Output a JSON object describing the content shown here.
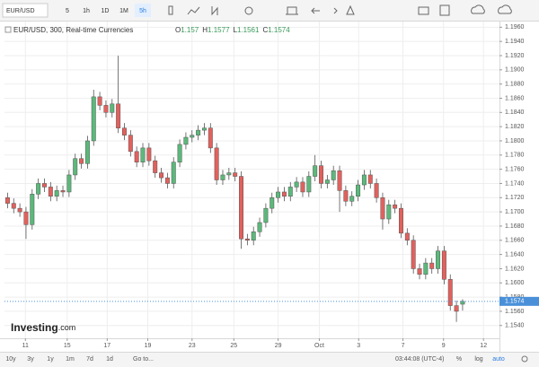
{
  "chart_data": {
    "type": "candlestick",
    "symbol": "EUR/USD",
    "intervals": [
      "5",
      "1h",
      "1D",
      "1M",
      "5h"
    ],
    "active_interval": 4,
    "title": "EUR/USD, 300, Real-time Currencies",
    "ohlc_labels": [
      "O",
      "H",
      "L",
      "C"
    ],
    "up_color": "#5bb97a",
    "down_color": "#e2615d",
    "current_color": "#4a90d9",
    "open": [
      1.172,
      1.1712,
      1.1705,
      1.17,
      1.1682,
      1.1725,
      1.174,
      1.1735,
      1.1722,
      1.173,
      1.1728,
      1.1752,
      1.1775,
      1.1768,
      1.18,
      1.1862,
      1.185,
      1.184,
      1.1852,
      1.1818,
      1.1808,
      1.1785,
      1.177,
      1.179,
      1.1772,
      1.1755,
      1.1748,
      1.174,
      1.177,
      1.1795,
      1.1805,
      1.1808,
      1.1815,
      1.1818,
      1.179,
      1.1745,
      1.1752,
      1.1755,
      1.175,
      1.1662,
      1.166,
      1.1672,
      1.1685,
      1.1705,
      1.172,
      1.1728,
      1.1722,
      1.1735,
      1.1742,
      1.1728,
      1.175,
      1.1765,
      1.174,
      1.1745,
      1.1758,
      1.173,
      1.1715,
      1.1722,
      1.1738,
      1.1752,
      1.174,
      1.172,
      1.169,
      1.171,
      1.1705,
      1.167,
      1.166,
      1.162,
      1.1612,
      1.1628,
      1.162,
      1.1645,
      1.1605,
      1.1568,
      1.157
    ],
    "high": [
      1.1727,
      1.1719,
      1.1712,
      1.1707,
      1.1732,
      1.1747,
      1.1747,
      1.1742,
      1.1737,
      1.1737,
      1.1759,
      1.1782,
      1.1782,
      1.1807,
      1.1872,
      1.1869,
      1.1857,
      1.1859,
      1.192,
      1.1825,
      1.1815,
      1.1792,
      1.1797,
      1.1797,
      1.1779,
      1.1762,
      1.1755,
      1.1777,
      1.1802,
      1.1812,
      1.1815,
      1.1822,
      1.1825,
      1.1825,
      1.1797,
      1.1759,
      1.1762,
      1.1762,
      1.1757,
      1.1669,
      1.1679,
      1.1692,
      1.1712,
      1.1727,
      1.1735,
      1.1735,
      1.1742,
      1.1749,
      1.1749,
      1.1757,
      1.178,
      1.1772,
      1.1752,
      1.1765,
      1.1765,
      1.1737,
      1.1729,
      1.1745,
      1.1759,
      1.1759,
      1.1747,
      1.1727,
      1.1717,
      1.1717,
      1.1712,
      1.1677,
      1.1667,
      1.1627,
      1.1635,
      1.1635,
      1.1652,
      1.1652,
      1.1612,
      1.1575,
      1.1577
    ],
    "low": [
      1.1705,
      1.1698,
      1.1693,
      1.1662,
      1.1675,
      1.1718,
      1.1728,
      1.1715,
      1.1715,
      1.1721,
      1.1721,
      1.1745,
      1.1761,
      1.1761,
      1.1793,
      1.1843,
      1.1833,
      1.1833,
      1.1811,
      1.1801,
      1.1778,
      1.1763,
      1.1763,
      1.1765,
      1.1748,
      1.1741,
      1.1733,
      1.1733,
      1.1763,
      1.1788,
      1.1798,
      1.1801,
      1.1808,
      1.1783,
      1.1738,
      1.1738,
      1.1745,
      1.1743,
      1.1648,
      1.1653,
      1.1653,
      1.1665,
      1.1678,
      1.1698,
      1.1713,
      1.1715,
      1.1715,
      1.1728,
      1.1721,
      1.1721,
      1.1743,
      1.1733,
      1.1733,
      1.1738,
      1.17,
      1.1708,
      1.1708,
      1.1715,
      1.1731,
      1.1733,
      1.1713,
      1.1675,
      1.1683,
      1.1698,
      1.1663,
      1.1653,
      1.1613,
      1.1605,
      1.1605,
      1.1613,
      1.1613,
      1.1598,
      1.1561,
      1.1545,
      1.1561
    ],
    "close": [
      1.1712,
      1.1705,
      1.17,
      1.1682,
      1.1725,
      1.174,
      1.1735,
      1.1722,
      1.173,
      1.1728,
      1.1752,
      1.1775,
      1.1768,
      1.18,
      1.1862,
      1.185,
      1.184,
      1.1852,
      1.1818,
      1.1808,
      1.1785,
      1.177,
      1.179,
      1.1772,
      1.1755,
      1.1748,
      1.174,
      1.177,
      1.1795,
      1.1805,
      1.1808,
      1.1815,
      1.1818,
      1.179,
      1.1745,
      1.1752,
      1.1755,
      1.175,
      1.1662,
      1.166,
      1.1672,
      1.1685,
      1.1705,
      1.172,
      1.1728,
      1.1722,
      1.1735,
      1.1742,
      1.1728,
      1.175,
      1.1765,
      1.174,
      1.1745,
      1.1758,
      1.173,
      1.1715,
      1.1722,
      1.1738,
      1.1752,
      1.174,
      1.172,
      1.169,
      1.171,
      1.1705,
      1.167,
      1.166,
      1.162,
      1.1612,
      1.1628,
      1.162,
      1.1645,
      1.1605,
      1.1568,
      1.156,
      1.1574
    ],
    "xlim": [
      -0.5,
      80
    ],
    "xticks": [
      {
        "value": 2.9,
        "label": "11"
      },
      {
        "value": 9.7,
        "label": "15"
      },
      {
        "value": 16.2,
        "label": "17"
      },
      {
        "value": 22.8,
        "label": "19"
      },
      {
        "value": 30,
        "label": "23"
      },
      {
        "value": 36.8,
        "label": "25"
      },
      {
        "value": 44,
        "label": "29"
      },
      {
        "value": 50.7,
        "label": "Oct"
      },
      {
        "value": 57.1,
        "label": "3"
      },
      {
        "value": 64.3,
        "label": "7"
      },
      {
        "value": 70.9,
        "label": "9"
      },
      {
        "value": 77.4,
        "label": "12"
      }
    ],
    "ylim": [
      1.1522,
      1.1968
    ],
    "yticks": [
      {
        "value": 1.154,
        "label": "1.1540"
      },
      {
        "value": 1.156,
        "label": "1.1560"
      },
      {
        "value": 1.158,
        "label": "1.1580"
      },
      {
        "value": 1.16,
        "label": "1.1600"
      },
      {
        "value": 1.162,
        "label": "1.1620"
      },
      {
        "value": 1.164,
        "label": "1.1640"
      },
      {
        "value": 1.166,
        "label": "1.1660"
      },
      {
        "value": 1.168,
        "label": "1.1680"
      },
      {
        "value": 1.17,
        "label": "1.1700"
      },
      {
        "value": 1.172,
        "label": "1.1720"
      },
      {
        "value": 1.174,
        "label": "1.1740"
      },
      {
        "value": 1.176,
        "label": "1.1760"
      },
      {
        "value": 1.178,
        "label": "1.1780"
      },
      {
        "value": 1.18,
        "label": "1.1800"
      },
      {
        "value": 1.182,
        "label": "1.1820"
      },
      {
        "value": 1.184,
        "label": "1.1840"
      },
      {
        "value": 1.186,
        "label": "1.1860"
      },
      {
        "value": 1.188,
        "label": "1.1880"
      },
      {
        "value": 1.19,
        "label": "1.1900"
      },
      {
        "value": 1.192,
        "label": "1.1920"
      },
      {
        "value": 1.194,
        "label": "1.1940"
      },
      {
        "value": 1.196,
        "label": "1.1960"
      }
    ],
    "grid": true,
    "brand": "Investing",
    "brand_suffix": ".com",
    "ranges": [
      "10y",
      "3y",
      "1y",
      "1m",
      "7d",
      "1d"
    ],
    "goto": "Go to...",
    "clock": "03:44:08 (UTC-4)",
    "scale_options": [
      "%",
      "log",
      "auto"
    ]
  }
}
